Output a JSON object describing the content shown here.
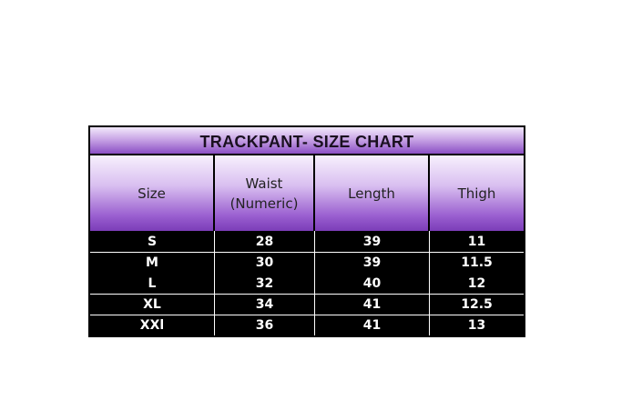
{
  "title": "TRACKPANT- SIZE CHART",
  "headers": [
    "Size",
    "Waist\n(Numeric)",
    "Length",
    "Thigh"
  ],
  "header_waist": [
    "Waist",
    "(Numeric)"
  ],
  "rows": [
    [
      "S",
      "28",
      "39",
      "11"
    ],
    [
      "M",
      "30",
      "39",
      "11.5"
    ],
    [
      "L",
      "32",
      "40",
      "12"
    ],
    [
      "XL",
      "34",
      "41",
      "12.5"
    ],
    [
      "XXl",
      "36",
      "41",
      "13"
    ]
  ],
  "colors": {
    "header_purple": "#7b3db8",
    "body": "#000000",
    "text": "#ffffff"
  }
}
